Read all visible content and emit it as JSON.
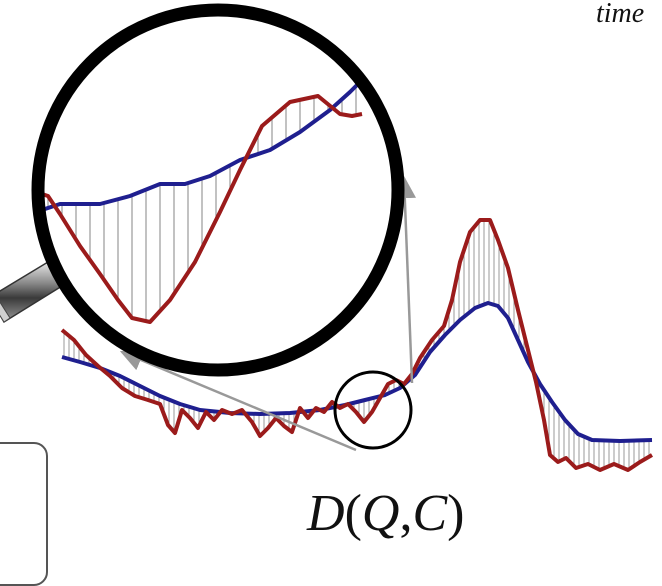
{
  "corner_text": "time",
  "distance_label": {
    "func": "D",
    "open": "(",
    "q": "Q",
    "comma": ",",
    "c": "C",
    "close": ")"
  },
  "colors": {
    "series_q": "#9b1b1b",
    "series_c": "#1f1f8f",
    "hatch": "#9a9a9a",
    "circle": "#000000",
    "arrow": "#999999"
  },
  "icons": [
    "magnifying-glass-handle-icon",
    "arrow-icon"
  ]
}
